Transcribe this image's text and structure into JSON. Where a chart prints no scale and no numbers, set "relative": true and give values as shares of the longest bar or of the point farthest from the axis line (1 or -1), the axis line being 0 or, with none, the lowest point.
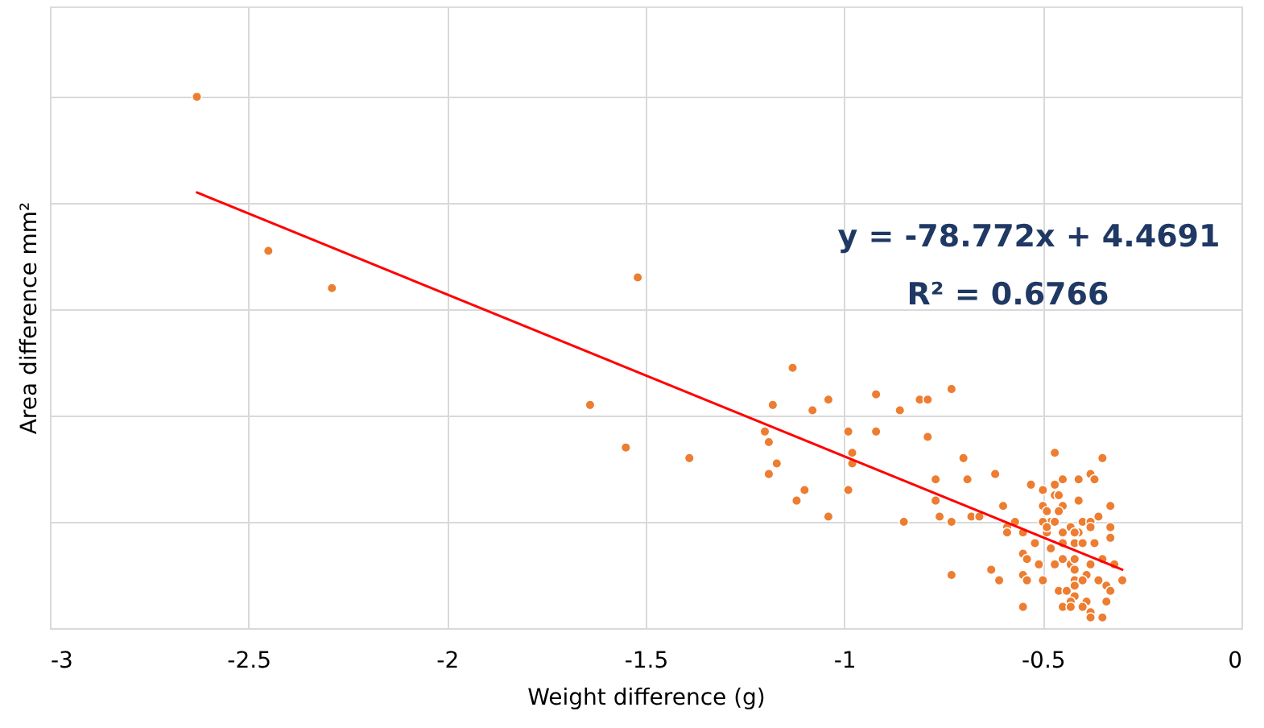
{
  "chart_data": {
    "type": "scatter",
    "relative": true,
    "xlabel": "Weight difference (g)",
    "ylabel": "Area difference mm²",
    "xlim": [
      -3,
      0
    ],
    "xticks": [
      -3,
      -2.5,
      -2,
      -1.5,
      -1,
      -0.5,
      0
    ],
    "grid": true,
    "annotations": [
      "y = -78.772x + 4.4691",
      "R² = 0.6766"
    ],
    "series": [
      {
        "color": "#ed7d31",
        "marker": "circle",
        "x": [
          -2.63,
          -2.45,
          -2.29,
          -1.52,
          -1.64,
          -1.55,
          -1.39,
          -1.13,
          -1.18,
          -1.04,
          -1.08,
          -0.92,
          -0.86,
          -0.81,
          -0.79,
          -0.73,
          -1.2,
          -1.19,
          -0.99,
          -0.92,
          -0.79,
          -0.98,
          -0.98,
          -1.17,
          -1.19,
          -0.7,
          -0.77,
          -0.69,
          -1.1,
          -1.12,
          -0.99,
          -0.77,
          -0.76,
          -1.04,
          -0.85,
          -0.73,
          -0.68,
          -0.66,
          -0.62,
          -0.47,
          -0.35,
          -0.53,
          -0.45,
          -0.41,
          -0.38,
          -0.37,
          -0.5,
          -0.47,
          -0.47,
          -0.46,
          -0.41,
          -0.45,
          -0.33,
          -0.6,
          -0.5,
          -0.46,
          -0.57,
          -0.59,
          -0.55,
          -0.49,
          -0.48,
          -0.5,
          -0.47,
          -0.4,
          -0.36,
          -0.38,
          -0.33,
          -0.43,
          -0.41,
          -0.38,
          -0.59,
          -0.49,
          -0.45,
          -0.42,
          -0.49,
          -0.55,
          -0.52,
          -0.48,
          -0.45,
          -0.42,
          -0.4,
          -0.37,
          -0.33,
          -0.54,
          -0.51,
          -0.45,
          -0.47,
          -0.43,
          -0.42,
          -0.38,
          -0.35,
          -0.32,
          -0.73,
          -0.63,
          -0.61,
          -0.55,
          -0.54,
          -0.5,
          -0.42,
          -0.39,
          -0.42,
          -0.4,
          -0.36,
          -0.3,
          -0.46,
          -0.44,
          -0.42,
          -0.34,
          -0.33,
          -0.42,
          -0.43,
          -0.39,
          -0.34,
          -0.55,
          -0.45,
          -0.43,
          -0.4,
          -0.38,
          -0.35,
          -0.38
        ],
        "values": [
          1.0,
          0.71,
          0.64,
          0.66,
          0.42,
          0.34,
          0.32,
          0.49,
          0.42,
          0.43,
          0.41,
          0.44,
          0.41,
          0.43,
          0.43,
          0.45,
          0.37,
          0.35,
          0.37,
          0.37,
          0.36,
          0.33,
          0.31,
          0.31,
          0.29,
          0.32,
          0.28,
          0.28,
          0.26,
          0.24,
          0.26,
          0.24,
          0.21,
          0.21,
          0.2,
          0.2,
          0.21,
          0.21,
          0.29,
          0.33,
          0.32,
          0.27,
          0.28,
          0.28,
          0.29,
          0.28,
          0.26,
          0.27,
          0.25,
          0.25,
          0.24,
          0.23,
          0.23,
          0.23,
          0.23,
          0.22,
          0.2,
          0.19,
          0.18,
          0.22,
          0.2,
          0.2,
          0.2,
          0.2,
          0.21,
          0.2,
          0.19,
          0.19,
          0.18,
          0.19,
          0.18,
          0.18,
          0.18,
          0.18,
          0.19,
          0.14,
          0.16,
          0.15,
          0.16,
          0.16,
          0.16,
          0.16,
          0.17,
          0.13,
          0.12,
          0.13,
          0.12,
          0.12,
          0.13,
          0.12,
          0.13,
          0.12,
          0.1,
          0.11,
          0.09,
          0.1,
          0.09,
          0.09,
          0.11,
          0.1,
          0.09,
          0.09,
          0.09,
          0.09,
          0.07,
          0.07,
          0.08,
          0.08,
          0.07,
          0.06,
          0.05,
          0.05,
          0.05,
          0.04,
          0.04,
          0.04,
          0.04,
          0.03,
          0.02,
          0.02
        ]
      },
      {
        "type": "line",
        "color": "#ff0000",
        "x": [
          -2.63,
          -0.3
        ],
        "values": [
          0.82,
          0.11
        ]
      }
    ]
  }
}
